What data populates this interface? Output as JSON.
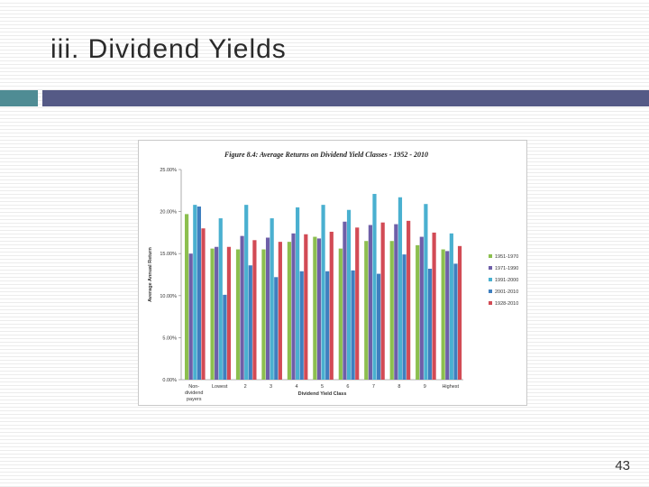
{
  "slide": {
    "title": "iii. Dividend Yields",
    "page_number": "43"
  },
  "colors": {
    "title_accent": "#4f8c94",
    "title_bar": "#555a86"
  },
  "chart_data": {
    "type": "bar",
    "title": "Figure 8.4: Average Returns on Dividend Yield Classes - 1952 - 2010",
    "xlabel": "Dividend Yield Class",
    "ylabel": "Average Annual Return",
    "ylim": [
      0,
      0.25
    ],
    "yticks": [
      0,
      0.05,
      0.1,
      0.15,
      0.2,
      0.25
    ],
    "ytick_labels": [
      "0.00%",
      "5.00%",
      "10.00%",
      "15.00%",
      "20.00%",
      "25.00%"
    ],
    "categories": [
      "Non-dividend payers",
      "Lowest",
      "2",
      "3",
      "4",
      "5",
      "6",
      "7",
      "8",
      "9",
      "Highest"
    ],
    "legend_position": "right",
    "grid": false,
    "series": [
      {
        "name": "1951-1970",
        "color": "#8cbf4f",
        "values": [
          0.197,
          0.156,
          0.155,
          0.155,
          0.164,
          0.17,
          0.156,
          0.165,
          0.165,
          0.16,
          0.155
        ]
      },
      {
        "name": "1971-1990",
        "color": "#6e5fa8",
        "values": [
          0.15,
          0.158,
          0.171,
          0.169,
          0.174,
          0.168,
          0.188,
          0.184,
          0.185,
          0.17,
          0.153
        ]
      },
      {
        "name": "1991-2000",
        "color": "#4ab0d0",
        "values": [
          0.208,
          0.192,
          0.208,
          0.192,
          0.205,
          0.208,
          0.202,
          0.221,
          0.217,
          0.209,
          0.174
        ]
      },
      {
        "name": "2001-2010",
        "color": "#3f7fbf",
        "values": [
          0.206,
          0.101,
          0.136,
          0.122,
          0.129,
          0.129,
          0.13,
          0.126,
          0.149,
          0.132,
          0.138
        ]
      },
      {
        "name": "1928-2010",
        "color": "#d24b55",
        "values": [
          0.18,
          0.158,
          0.166,
          0.164,
          0.173,
          0.176,
          0.181,
          0.187,
          0.189,
          0.175,
          0.159
        ]
      }
    ]
  }
}
